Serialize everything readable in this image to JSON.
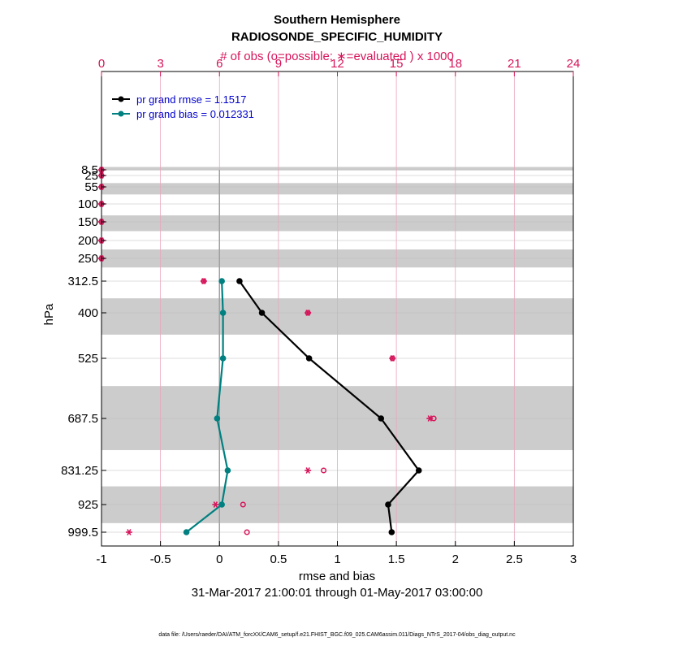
{
  "colors": {
    "rmse": "#000000",
    "bias": "#008080",
    "obs": "#d6145a",
    "legend_text": "#0000cc",
    "band": "#cccccc"
  },
  "chart_data": {
    "type": "line",
    "title_line1": "Southern Hemisphere",
    "title_line2": "RADIOSONDE_SPECIFIC_HUMIDITY",
    "top_axis_label": "# of obs (o=possible; ∗=evaluated ) x 1000",
    "xlabel": "rmse and bias",
    "date_range": "31-Mar-2017 21:00:01 through 01-May-2017 03:00:00",
    "ylabel": "hPa",
    "footer": "data file: /Users/raeder/DAI/ATM_forcXX/CAM6_setup/f.e21.FHIST_BGC.f09_025.CAM6assim.011/Diags_NTrS_2017-04/obs_diag_output.nc",
    "xlim": [
      -1,
      3
    ],
    "x_ticks": [
      "-1",
      "-0.5",
      "0",
      "0.5",
      "1",
      "1.5",
      "2",
      "2.5",
      "3"
    ],
    "top_xlim": [
      0,
      24
    ],
    "top_ticks": [
      "0",
      "3",
      "6",
      "9",
      "12",
      "15",
      "18",
      "21",
      "24"
    ],
    "levels": [
      {
        "label": "8.5",
        "p": 8.5
      },
      {
        "label": "25",
        "p": 25
      },
      {
        "label": "55",
        "p": 55
      },
      {
        "label": "100",
        "p": 100
      },
      {
        "label": "150",
        "p": 150
      },
      {
        "label": "200",
        "p": 200
      },
      {
        "label": "250",
        "p": 250
      },
      {
        "label": "312.5",
        "p": 312.5
      },
      {
        "label": "400",
        "p": 400
      },
      {
        "label": "525",
        "p": 525
      },
      {
        "label": "687.5",
        "p": 687.5
      },
      {
        "label": "831.25",
        "p": 831.25
      },
      {
        "label": "925",
        "p": 925
      },
      {
        "label": "999.5",
        "p": 999.5
      }
    ],
    "bands": [
      [
        0,
        10
      ],
      [
        45,
        75
      ],
      [
        132,
        175
      ],
      [
        225,
        275
      ],
      [
        360,
        460
      ],
      [
        600,
        775
      ],
      [
        875,
        975
      ]
    ],
    "series": [
      {
        "name": "pr grand rmse = 1.1517",
        "key": "rmse",
        "points": [
          [
            0.17,
            312.5
          ],
          [
            0.36,
            400
          ],
          [
            0.76,
            525
          ],
          [
            1.37,
            687.5
          ],
          [
            1.69,
            831.25
          ],
          [
            1.43,
            925
          ],
          [
            1.46,
            999.5
          ]
        ]
      },
      {
        "name": "pr grand bias = 0.012331",
        "key": "bias",
        "points": [
          [
            0.02,
            312.5
          ],
          [
            0.03,
            400
          ],
          [
            0.03,
            525
          ],
          [
            -0.02,
            687.5
          ],
          [
            0.07,
            831.25
          ],
          [
            0.02,
            925
          ],
          [
            -0.28,
            999.5
          ]
        ]
      }
    ],
    "obs_possible": [
      [
        0,
        8.5
      ],
      [
        0,
        25
      ],
      [
        0,
        55
      ],
      [
        0,
        100
      ],
      [
        0,
        150
      ],
      [
        0,
        200
      ],
      [
        0,
        250
      ],
      [
        5.2,
        312.5
      ],
      [
        10.5,
        400
      ],
      [
        14.8,
        525
      ],
      [
        16.9,
        687.5
      ],
      [
        11.3,
        831.25
      ],
      [
        7.2,
        925
      ],
      [
        7.4,
        999.5
      ]
    ],
    "obs_evaluated": [
      [
        0,
        8.5
      ],
      [
        0,
        25
      ],
      [
        0,
        55
      ],
      [
        0,
        100
      ],
      [
        0,
        150
      ],
      [
        0,
        200
      ],
      [
        0,
        250
      ],
      [
        5.2,
        312.5
      ],
      [
        10.5,
        400
      ],
      [
        14.8,
        525
      ],
      [
        16.7,
        687.5
      ],
      [
        10.5,
        831.25
      ],
      [
        5.8,
        925
      ],
      [
        1.4,
        999.5
      ]
    ]
  }
}
